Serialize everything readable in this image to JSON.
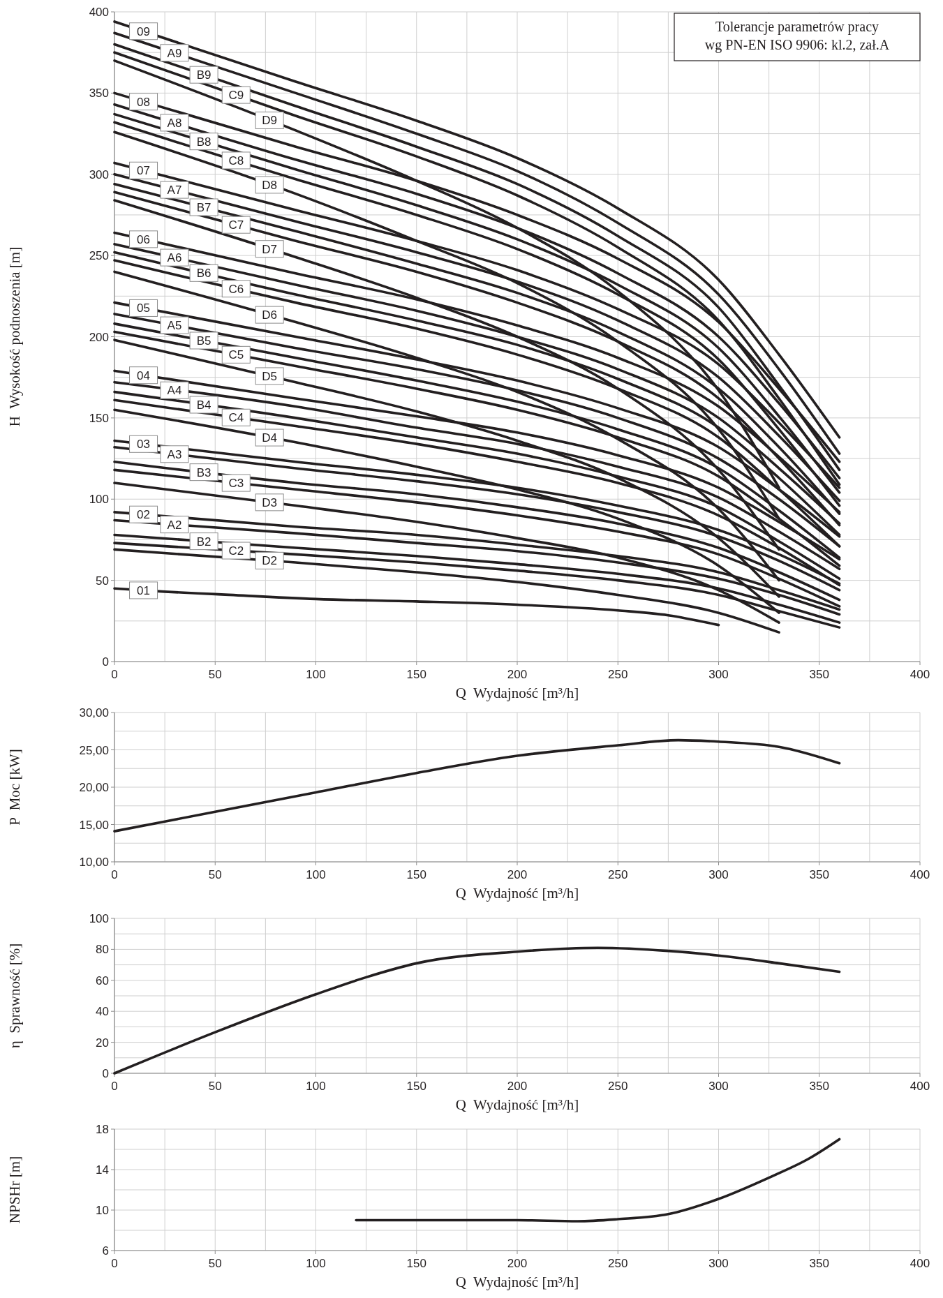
{
  "chart_data": [
    {
      "type": "line",
      "xlabel": "Q  Wydajność [m³/h]",
      "ylabel": "H  Wysokość podnoszenia [m]",
      "annotations": [
        "Tolerancje parametrów pracy\nwg PN-EN ISO 9906: kl.2, zał.A"
      ],
      "xlim": [
        0,
        400
      ],
      "ylim": [
        0,
        400
      ],
      "xticks": [
        0,
        {
          "value": 25,
          "label": null
        },
        50,
        {
          "value": 75,
          "label": null
        },
        100,
        {
          "value": 125,
          "label": null
        },
        150,
        {
          "value": 175,
          "label": null
        },
        200,
        {
          "value": 225,
          "label": null
        },
        250,
        {
          "value": 275,
          "label": null
        },
        300,
        {
          "value": 325,
          "label": null
        },
        350,
        {
          "value": 375,
          "label": null
        },
        400
      ],
      "yticks": [
        0,
        {
          "value": 25,
          "label": null
        },
        50,
        {
          "value": 75,
          "label": null
        },
        100,
        {
          "value": 125,
          "label": null
        },
        150,
        {
          "value": 175,
          "label": null
        },
        200,
        {
          "value": 225,
          "label": null
        },
        250,
        {
          "value": 275,
          "label": null
        },
        300,
        {
          "value": 325,
          "label": null
        },
        350,
        {
          "value": 375,
          "label": null
        },
        400
      ],
      "grid": true,
      "series": [
        {
          "name": "01",
          "color": "#231f20",
          "x": [
            0,
            25,
            50,
            100,
            150,
            200,
            250,
            275,
            300
          ],
          "values": [
            45,
            43,
            41.5,
            38.5,
            37,
            35,
            31.5,
            28.5,
            22.5
          ]
        },
        {
          "name": "02",
          "color": "#231f20",
          "x": [
            0,
            90,
            150,
            200,
            250,
            300,
            330,
            360
          ],
          "values": [
            92,
            83,
            78,
            72,
            65,
            55,
            44,
            32
          ]
        },
        {
          "name": "A2",
          "color": "#231f20",
          "x": [
            0,
            90,
            150,
            200,
            250,
            300,
            330,
            360
          ],
          "values": [
            87,
            79,
            73,
            68,
            61,
            51,
            41,
            29
          ]
        },
        {
          "name": "B2",
          "color": "#231f20",
          "x": [
            0,
            90,
            150,
            200,
            250,
            300,
            330,
            360
          ],
          "values": [
            78,
            70,
            65,
            60,
            54,
            45,
            35,
            24
          ]
        },
        {
          "name": "C2",
          "color": "#231f20",
          "x": [
            0,
            90,
            150,
            200,
            250,
            300,
            330,
            360
          ],
          "values": [
            73,
            66,
            61,
            56,
            50,
            41,
            31,
            21
          ]
        },
        {
          "name": "D2",
          "color": "#231f20",
          "x": [
            0,
            90,
            150,
            200,
            250,
            300,
            330
          ],
          "values": [
            69,
            61,
            55,
            49,
            41,
            30,
            18
          ]
        },
        {
          "name": "03",
          "color": "#231f20",
          "x": [
            0,
            90,
            150,
            200,
            250,
            300,
            330,
            360
          ],
          "values": [
            136,
            123,
            115,
            107,
            96,
            81,
            66,
            48
          ]
        },
        {
          "name": "A3",
          "color": "#231f20",
          "x": [
            0,
            90,
            150,
            200,
            250,
            300,
            330,
            360
          ],
          "values": [
            132,
            119,
            111,
            103,
            92,
            77,
            62,
            44
          ]
        },
        {
          "name": "B3",
          "color": "#231f20",
          "x": [
            0,
            90,
            150,
            200,
            250,
            300,
            330,
            360
          ],
          "values": [
            123,
            110,
            103,
            95,
            85,
            70,
            55,
            38
          ]
        },
        {
          "name": "C3",
          "color": "#231f20",
          "x": [
            0,
            90,
            150,
            200,
            250,
            300,
            330,
            360
          ],
          "values": [
            118,
            106,
            98,
            90,
            80,
            66,
            51,
            34
          ]
        },
        {
          "name": "D3",
          "color": "#231f20",
          "x": [
            0,
            90,
            150,
            200,
            250,
            300,
            330
          ],
          "values": [
            110,
            96,
            86,
            76,
            64,
            44,
            24
          ]
        },
        {
          "name": "04",
          "color": "#231f20",
          "x": [
            0,
            90,
            150,
            200,
            250,
            300,
            330,
            360
          ],
          "values": [
            179,
            162,
            151,
            141,
            127,
            107,
            86,
            63
          ]
        },
        {
          "name": "A4",
          "color": "#231f20",
          "x": [
            0,
            90,
            150,
            200,
            250,
            300,
            330,
            360
          ],
          "values": [
            172,
            157,
            144,
            134,
            120,
            101,
            80,
            57
          ]
        },
        {
          "name": "B4",
          "color": "#231f20",
          "x": [
            0,
            90,
            150,
            200,
            250,
            300,
            330,
            360
          ],
          "values": [
            166,
            150,
            138,
            128,
            114,
            95,
            74,
            51
          ]
        },
        {
          "name": "C4",
          "color": "#231f20",
          "x": [
            0,
            90,
            150,
            200,
            250,
            300,
            330,
            360
          ],
          "values": [
            161,
            145,
            134,
            123,
            110,
            90,
            70,
            47
          ]
        },
        {
          "name": "D4",
          "color": "#231f20",
          "x": [
            0,
            90,
            150,
            200,
            250,
            300,
            330
          ],
          "values": [
            155,
            135,
            120,
            106,
            88,
            59,
            30
          ]
        },
        {
          "name": "05",
          "color": "#231f20",
          "x": [
            0,
            90,
            150,
            200,
            250,
            300,
            330,
            360
          ],
          "values": [
            221,
            200,
            186,
            173,
            156,
            132,
            106,
            77
          ]
        },
        {
          "name": "A5",
          "color": "#231f20",
          "x": [
            0,
            90,
            150,
            200,
            250,
            300,
            330,
            360
          ],
          "values": [
            214,
            193,
            180,
            167,
            150,
            125,
            100,
            71
          ]
        },
        {
          "name": "B5",
          "color": "#231f20",
          "x": [
            0,
            90,
            150,
            200,
            250,
            300,
            330,
            360
          ],
          "values": [
            208,
            187,
            173,
            160,
            143,
            119,
            93,
            64
          ]
        },
        {
          "name": "C5",
          "color": "#231f20",
          "x": [
            0,
            90,
            150,
            200,
            250,
            300,
            330,
            360
          ],
          "values": [
            203,
            182,
            168,
            155,
            138,
            114,
            88,
            59
          ]
        },
        {
          "name": "D5",
          "color": "#231f20",
          "x": [
            0,
            90,
            150,
            200,
            250,
            300,
            330
          ],
          "values": [
            198,
            172,
            154,
            136,
            113,
            76,
            40
          ]
        },
        {
          "name": "06",
          "color": "#231f20",
          "x": [
            0,
            90,
            150,
            200,
            250,
            300,
            330,
            360
          ],
          "values": [
            264,
            239,
            223,
            207,
            187,
            157,
            126,
            92
          ]
        },
        {
          "name": "A6",
          "color": "#231f20",
          "x": [
            0,
            90,
            150,
            200,
            250,
            300,
            330,
            360
          ],
          "values": [
            257,
            232,
            216,
            200,
            180,
            150,
            119,
            85
          ]
        },
        {
          "name": "B6",
          "color": "#231f20",
          "x": [
            0,
            90,
            150,
            200,
            250,
            300,
            330,
            360
          ],
          "values": [
            252,
            226,
            210,
            195,
            174,
            144,
            113,
            78
          ]
        },
        {
          "name": "C6",
          "color": "#231f20",
          "x": [
            0,
            90,
            150,
            200,
            250,
            300,
            330,
            360
          ],
          "values": [
            247,
            221,
            205,
            189,
            168,
            138,
            106,
            71
          ]
        },
        {
          "name": "D6",
          "color": "#231f20",
          "x": [
            0,
            90,
            150,
            200,
            250,
            300,
            330
          ],
          "values": [
            240,
            209,
            187,
            166,
            137,
            94,
            50
          ]
        },
        {
          "name": "07",
          "color": "#231f20",
          "x": [
            0,
            90,
            150,
            200,
            250,
            300,
            330,
            360
          ],
          "values": [
            307,
            278,
            259,
            241,
            217,
            183,
            147,
            107
          ]
        },
        {
          "name": "A7",
          "color": "#231f20",
          "x": [
            0,
            90,
            150,
            200,
            250,
            300,
            330,
            360
          ],
          "values": [
            300,
            271,
            252,
            234,
            210,
            175,
            139,
            99
          ]
        },
        {
          "name": "B7",
          "color": "#231f20",
          "x": [
            0,
            90,
            150,
            200,
            250,
            300,
            330,
            360
          ],
          "values": [
            294,
            265,
            245,
            227,
            203,
            168,
            132,
            91
          ]
        },
        {
          "name": "C7",
          "color": "#231f20",
          "x": [
            0,
            90,
            150,
            200,
            250,
            300,
            330,
            360
          ],
          "values": [
            289,
            259,
            240,
            221,
            197,
            162,
            125,
            84
          ]
        },
        {
          "name": "D7",
          "color": "#231f20",
          "x": [
            0,
            90,
            150,
            200,
            250,
            300,
            330
          ],
          "values": [
            284,
            249,
            224,
            200,
            168,
            118,
            69
          ]
        },
        {
          "name": "08",
          "color": "#231f20",
          "x": [
            0,
            90,
            150,
            200,
            250,
            300,
            330,
            360
          ],
          "values": [
            350,
            317,
            296,
            275,
            248,
            209,
            168,
            123
          ]
        },
        {
          "name": "A8",
          "color": "#231f20",
          "x": [
            0,
            90,
            150,
            200,
            250,
            300,
            330,
            360
          ],
          "values": [
            343,
            309,
            288,
            267,
            239,
            200,
            159,
            113
          ]
        },
        {
          "name": "B8",
          "color": "#231f20",
          "x": [
            0,
            90,
            150,
            200,
            250,
            300,
            330,
            360
          ],
          "values": [
            337,
            303,
            281,
            260,
            232,
            193,
            151,
            104
          ]
        },
        {
          "name": "C8",
          "color": "#231f20",
          "x": [
            0,
            90,
            150,
            200,
            250,
            300,
            330,
            360
          ],
          "values": [
            332,
            297,
            275,
            254,
            226,
            186,
            143,
            96
          ]
        },
        {
          "name": "D8",
          "color": "#231f20",
          "x": [
            0,
            90,
            150,
            200,
            250,
            300,
            330
          ],
          "values": [
            326,
            288,
            259,
            233,
            197,
            143,
            88
          ]
        },
        {
          "name": "09",
          "color": "#231f20",
          "x": [
            0,
            90,
            150,
            200,
            250,
            300,
            330,
            360
          ],
          "values": [
            394,
            357,
            333,
            310,
            279,
            235,
            189,
            138
          ]
        },
        {
          "name": "A9",
          "color": "#231f20",
          "x": [
            0,
            90,
            150,
            200,
            250,
            300,
            330,
            360
          ],
          "values": [
            387,
            350,
            325,
            302,
            270,
            226,
            180,
            128
          ]
        },
        {
          "name": "B9",
          "color": "#231f20",
          "x": [
            0,
            90,
            150,
            200,
            250,
            300,
            330,
            360
          ],
          "values": [
            380,
            342,
            317,
            294,
            262,
            218,
            170,
            118
          ]
        },
        {
          "name": "C9",
          "color": "#231f20",
          "x": [
            0,
            90,
            150,
            200,
            250,
            300,
            330,
            360
          ],
          "values": [
            375,
            336,
            311,
            287,
            255,
            210,
            162,
            109
          ]
        },
        {
          "name": "D9",
          "color": "#231f20",
          "x": [
            0,
            90,
            150,
            200,
            250,
            300,
            330
          ],
          "values": [
            370,
            327,
            296,
            267,
            228,
            167,
            107
          ]
        }
      ]
    },
    {
      "type": "line",
      "xlabel": "Q  Wydajność [m³/h]",
      "ylabel": "P  Moc [kW]",
      "xlim": [
        0,
        400
      ],
      "ylim": [
        10,
        30
      ],
      "xticks": [
        0,
        {
          "value": 25,
          "label": null
        },
        50,
        {
          "value": 75,
          "label": null
        },
        100,
        {
          "value": 125,
          "label": null
        },
        150,
        {
          "value": 175,
          "label": null
        },
        200,
        {
          "value": 225,
          "label": null
        },
        250,
        {
          "value": 275,
          "label": null
        },
        300,
        {
          "value": 325,
          "label": null
        },
        350,
        {
          "value": 375,
          "label": null
        },
        400
      ],
      "yticks": [
        {
          "value": 10,
          "label": "10,00"
        },
        {
          "value": 12.5,
          "label": null
        },
        {
          "value": 15,
          "label": "15,00"
        },
        {
          "value": 17.5,
          "label": null
        },
        {
          "value": 20,
          "label": "20,00"
        },
        {
          "value": 22.5,
          "label": null
        },
        {
          "value": 25,
          "label": "25,00"
        },
        {
          "value": 27.5,
          "label": null
        },
        {
          "value": 30,
          "label": "30,00"
        }
      ],
      "grid": true,
      "series": [
        {
          "color": "#231f20",
          "x": [
            0,
            50,
            100,
            150,
            200,
            250,
            280,
            300,
            330,
            360
          ],
          "values": [
            14.1,
            16.7,
            19.3,
            21.9,
            24.2,
            25.6,
            26.3,
            26.1,
            25.4,
            23.2
          ]
        }
      ]
    },
    {
      "type": "line",
      "xlabel": "Q  Wydajność [m³/h]",
      "ylabel": "η  Sprawność [%]",
      "xlim": [
        0,
        400
      ],
      "ylim": [
        0,
        100
      ],
      "xticks": [
        0,
        {
          "value": 25,
          "label": null
        },
        50,
        {
          "value": 75,
          "label": null
        },
        100,
        {
          "value": 125,
          "label": null
        },
        150,
        {
          "value": 175,
          "label": null
        },
        200,
        {
          "value": 225,
          "label": null
        },
        250,
        {
          "value": 275,
          "label": null
        },
        300,
        {
          "value": 325,
          "label": null
        },
        350,
        {
          "value": 375,
          "label": null
        },
        400
      ],
      "yticks": [
        0,
        {
          "value": 10,
          "label": null
        },
        20,
        {
          "value": 30,
          "label": null
        },
        40,
        {
          "value": 50,
          "label": null
        },
        60,
        {
          "value": 70,
          "label": null
        },
        80,
        {
          "value": 90,
          "label": null
        },
        100
      ],
      "grid": true,
      "series": [
        {
          "color": "#231f20",
          "x": [
            0,
            50,
            100,
            125,
            150,
            200,
            240,
            275,
            300,
            330,
            360
          ],
          "values": [
            0,
            26.5,
            51,
            62,
            71,
            78.5,
            81,
            79,
            76,
            71,
            65.5
          ]
        }
      ]
    },
    {
      "type": "line",
      "xlabel": "Q  Wydajność [m³/h]",
      "ylabel": "NPSHr [m]",
      "xlim": [
        0,
        400
      ],
      "ylim": [
        6,
        18
      ],
      "xticks": [
        0,
        {
          "value": 25,
          "label": null
        },
        50,
        {
          "value": 75,
          "label": null
        },
        100,
        {
          "value": 125,
          "label": null
        },
        150,
        {
          "value": 175,
          "label": null
        },
        200,
        {
          "value": 225,
          "label": null
        },
        250,
        {
          "value": 275,
          "label": null
        },
        300,
        {
          "value": 325,
          "label": null
        },
        350,
        {
          "value": 375,
          "label": null
        },
        400
      ],
      "yticks": [
        6,
        {
          "value": 8,
          "label": null
        },
        10,
        {
          "value": 12,
          "label": null
        },
        14,
        {
          "value": 16,
          "label": null
        },
        18
      ],
      "grid": true,
      "series": [
        {
          "color": "#231f20",
          "x": [
            120,
            150,
            200,
            230,
            250,
            275,
            300,
            325,
            345,
            360
          ],
          "values": [
            9,
            9,
            9,
            8.9,
            9.1,
            9.6,
            11.1,
            13.2,
            15.1,
            17
          ]
        }
      ]
    }
  ]
}
